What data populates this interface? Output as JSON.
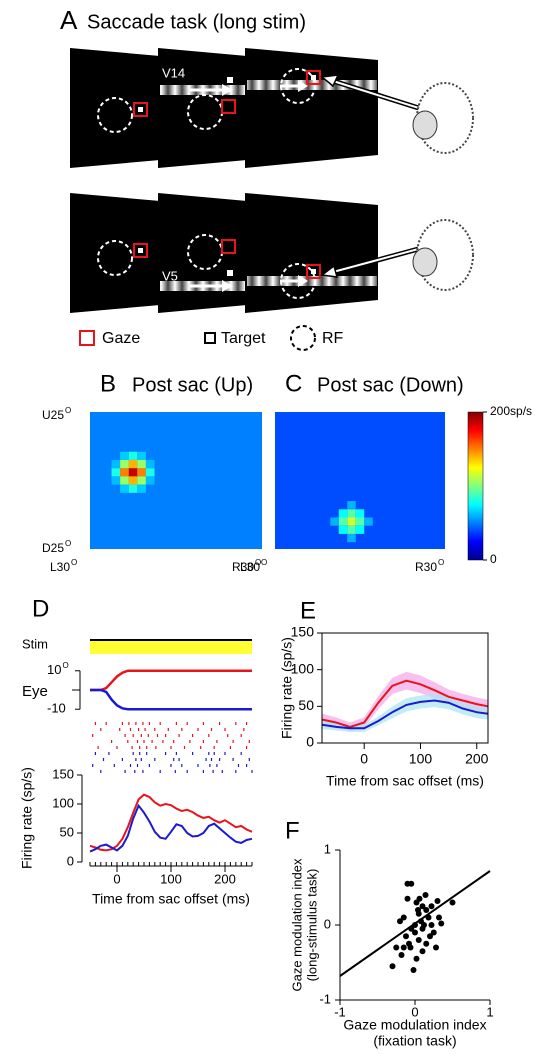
{
  "panel_a": {
    "label": "A",
    "title": "Saccade task (long stim)",
    "stim_labels": [
      "V14",
      "V5"
    ],
    "legend": [
      "Gaze",
      "Target",
      "RF"
    ]
  },
  "chart_data": [
    {
      "type": "heatmap",
      "label": "B",
      "title": "Post sac (Up)",
      "xlim": [
        -30,
        30
      ],
      "ylim": [
        -25,
        25
      ],
      "clim": [
        0,
        200
      ],
      "cell_size": 3,
      "background": 50,
      "axis_labels": {
        "top": "U25",
        "bottom": "D25",
        "left": "L30",
        "right": "R30",
        "degree": "O"
      },
      "cells": [
        [
          -15,
          3,
          185
        ],
        [
          -18,
          3,
          150
        ],
        [
          -12,
          3,
          150
        ],
        [
          -15,
          6,
          140
        ],
        [
          -15,
          0,
          140
        ],
        [
          -18,
          6,
          105
        ],
        [
          -12,
          6,
          105
        ],
        [
          -18,
          0,
          105
        ],
        [
          -12,
          0,
          105
        ],
        [
          -21,
          3,
          80
        ],
        [
          -9,
          3,
          80
        ],
        [
          -15,
          9,
          80
        ],
        [
          -15,
          -3,
          80
        ],
        [
          -18,
          9,
          65
        ],
        [
          -12,
          9,
          65
        ],
        [
          -18,
          -3,
          65
        ],
        [
          -12,
          -3,
          65
        ],
        [
          -21,
          6,
          62
        ],
        [
          -21,
          0,
          62
        ],
        [
          -9,
          6,
          62
        ],
        [
          -9,
          0,
          62
        ]
      ]
    },
    {
      "type": "heatmap",
      "label": "C",
      "title": "Post sac (Down)",
      "xlim": [
        -30,
        30
      ],
      "ylim": [
        -25,
        25
      ],
      "clim": [
        0,
        200
      ],
      "cell_size": 3,
      "background": 40,
      "axis_labels": {
        "left": "L30",
        "right": "R30",
        "degree": "O"
      },
      "colorbar_ticks": [
        {
          "value": 200,
          "label": "200sp/s"
        },
        0
      ],
      "cells": [
        [
          -3,
          -15,
          115
        ],
        [
          -6,
          -15,
          92
        ],
        [
          0,
          -15,
          92
        ],
        [
          -3,
          -12,
          92
        ],
        [
          -3,
          -18,
          92
        ],
        [
          -6,
          -12,
          75
        ],
        [
          0,
          -12,
          75
        ],
        [
          -6,
          -18,
          75
        ],
        [
          0,
          -18,
          75
        ],
        [
          -9,
          -15,
          60
        ],
        [
          3,
          -15,
          60
        ],
        [
          -3,
          -9,
          60
        ],
        [
          -3,
          -21,
          60
        ]
      ]
    },
    {
      "type": "line",
      "label": "D",
      "stim_label": "Stim",
      "xlabel": "Time from sac offset (ms)",
      "ylabel": "Firing rate (sp/s)",
      "xlim": [
        -50,
        250
      ],
      "xticks": [
        0,
        100,
        200
      ],
      "ylim": [
        0,
        150
      ],
      "yticks": [
        0,
        50,
        100,
        150
      ],
      "x": [
        -50,
        -40,
        -30,
        -20,
        -10,
        0,
        10,
        20,
        30,
        40,
        50,
        60,
        70,
        80,
        90,
        100,
        110,
        120,
        130,
        140,
        150,
        160,
        170,
        180,
        190,
        200,
        210,
        220,
        230,
        240,
        250
      ],
      "series": [
        {
          "color": "#e8141b",
          "values": [
            28,
            25,
            21,
            20,
            22,
            28,
            40,
            60,
            85,
            108,
            116,
            112,
            103,
            97,
            100,
            98,
            92,
            88,
            90,
            86,
            80,
            76,
            78,
            72,
            68,
            72,
            66,
            60,
            62,
            56,
            52
          ]
        },
        {
          "color": "#1a1ad0",
          "values": [
            18,
            22,
            28,
            30,
            25,
            20,
            28,
            45,
            75,
            97,
            85,
            70,
            52,
            42,
            40,
            52,
            65,
            62,
            50,
            44,
            45,
            50,
            62,
            66,
            58,
            50,
            42,
            35,
            33,
            38,
            40
          ]
        }
      ],
      "eye": {
        "label": "Eye",
        "degree": "O",
        "ylim": [
          -13,
          13
        ],
        "yticks": [
          10,
          -10
        ],
        "x": [
          -50,
          -30,
          -20,
          -10,
          0,
          10,
          20,
          40,
          100,
          250
        ],
        "series": [
          {
            "color": "#e8141b",
            "values": [
              0,
              0,
              1,
              4,
              7,
              9,
              10,
              10,
              10,
              10
            ]
          },
          {
            "color": "#1a1ad0",
            "values": [
              0,
              0,
              -1,
              -5,
              -8,
              -9.5,
              -10,
              -10,
              -10,
              -10
            ]
          }
        ]
      },
      "raster": [
        {
          "color": "#e8141b",
          "trials": [
            [
              -40,
              -20,
              10,
              22,
              35,
              48,
              60,
              80,
              110,
              130,
              160,
              190,
              220,
              240
            ],
            [
              -30,
              5,
              25,
              40,
              52,
              70,
              95,
              120,
              150,
              175,
              200,
              235
            ],
            [
              -45,
              15,
              30,
              45,
              58,
              75,
              90,
              115,
              140,
              170,
              205,
              230
            ],
            [
              -10,
              20,
              38,
              50,
              65,
              85,
              105,
              135,
              160,
              185,
              215,
              245
            ],
            [
              -35,
              0,
              28,
              42,
              55,
              72,
              100,
              125,
              155,
              180,
              210,
              240
            ]
          ]
        },
        {
          "color": "#1a1ad0",
          "trials": [
            [
              -40,
              -15,
              30,
              42,
              55,
              90,
              110,
              140,
              170,
              180,
              200,
              230
            ],
            [
              -25,
              10,
              35,
              45,
              70,
              105,
              115,
              165,
              175,
              190,
              215,
              245
            ],
            [
              -45,
              -5,
              25,
              38,
              60,
              100,
              120,
              150,
              172,
              185,
              225,
              240
            ],
            [
              -30,
              15,
              33,
              48,
              80,
              108,
              130,
              160,
              178,
              195,
              220,
              250
            ]
          ]
        }
      ]
    },
    {
      "type": "band",
      "label": "E",
      "xlabel": "Time from sac offset (ms)",
      "ylabel": "Firing rate (sp/s)",
      "xlim": [
        -75,
        220
      ],
      "xticks": [
        0,
        100,
        200
      ],
      "ylim": [
        0,
        150
      ],
      "yticks": [
        0,
        50,
        100,
        150
      ],
      "x": [
        -75,
        -50,
        -25,
        0,
        25,
        50,
        75,
        100,
        125,
        150,
        175,
        200,
        220
      ],
      "series": [
        {
          "color": "#e8141b",
          "band_color": "#f4a6e8",
          "values": [
            32,
            28,
            22,
            28,
            55,
            78,
            85,
            80,
            72,
            63,
            58,
            53,
            50
          ],
          "errors": [
            8,
            7,
            6,
            7,
            9,
            11,
            12,
            12,
            11,
            10,
            9,
            9,
            9
          ]
        },
        {
          "color": "#1a1ad0",
          "band_color": "#a8e6f0",
          "values": [
            25,
            22,
            20,
            20,
            30,
            42,
            52,
            56,
            58,
            55,
            47,
            42,
            40
          ],
          "errors": [
            6,
            5,
            5,
            5,
            6,
            8,
            9,
            9,
            9,
            9,
            8,
            8,
            8
          ]
        }
      ]
    },
    {
      "type": "scatter",
      "label": "F",
      "xlabel": [
        "Gaze modulation index",
        "(fixation task)"
      ],
      "ylabel": [
        "Gaze modulation index",
        "(long-stimulus task)"
      ],
      "xlim": [
        -1,
        1
      ],
      "xticks": [
        -1,
        0,
        1
      ],
      "ylim": [
        -1,
        1
      ],
      "yticks": [
        -1,
        0,
        1
      ],
      "fit_line": {
        "x": [
          -1,
          1
        ],
        "y": [
          -0.68,
          0.72
        ]
      },
      "x": [
        -0.05,
        -0.1,
        0.02,
        0.1,
        0.15,
        -0.2,
        -0.15,
        0.05,
        0.22,
        0.3,
        -0.05,
        0.08,
        0.18,
        -0.12,
        0.0,
        0.12,
        0.25,
        -0.25,
        -0.08,
        0.05,
        0.2,
        0.35,
        0.5,
        -0.18,
        -0.3,
        0.1,
        0.15,
        0.02,
        -0.02,
        0.28,
        0.06,
        -0.1,
        0.14,
        0.22,
        -0.06,
        0.0,
        0.1,
        -0.15,
        0.32,
        0.04
      ],
      "y": [
        0.55,
        0.55,
        0.3,
        0.25,
        0.2,
        0.05,
        0.1,
        0.15,
        0.25,
        0.32,
        -0.05,
        0.05,
        0.1,
        -0.15,
        0.0,
        0.0,
        -0.1,
        -0.3,
        -0.25,
        -0.2,
        -0.15,
        0.02,
        0.3,
        -0.4,
        -0.55,
        -0.35,
        -0.25,
        -0.45,
        -0.6,
        -0.3,
        0.35,
        0.35,
        0.4,
        0.0,
        -0.3,
        -0.1,
        -0.05,
        -0.3,
        0.1,
        0.2
      ]
    }
  ]
}
